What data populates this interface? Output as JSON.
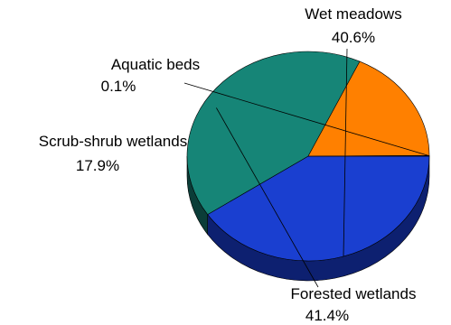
{
  "chart_data": {
    "type": "pie",
    "style": "3d",
    "slices": [
      {
        "name": "Wet meadows",
        "value": 40.6,
        "label": "40.6%",
        "color": "#1a3fd0",
        "side_color": "#0d2070"
      },
      {
        "name": "Forested wetlands",
        "value": 41.4,
        "label": "41.4%",
        "color": "#168577",
        "side_color": "#0b3d38"
      },
      {
        "name": "Scrub-shrub wetlands",
        "value": 17.9,
        "label": "17.9%",
        "color": "#ff8000",
        "side_color": "#a64500"
      },
      {
        "name": "Aquatic beds",
        "value": 0.1,
        "label": "0.1%",
        "color": "#6a3a10",
        "side_color": "#3a2008"
      }
    ]
  }
}
